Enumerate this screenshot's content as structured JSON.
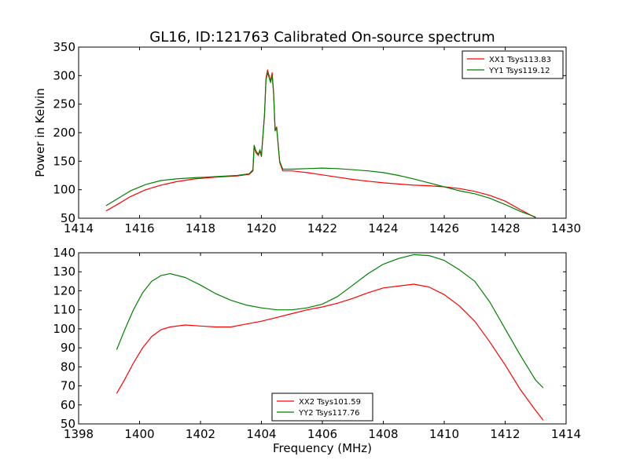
{
  "chart_data": [
    {
      "type": "line",
      "title": "GL16, ID:121763 Calibrated On-source spectrum",
      "xlabel": "",
      "ylabel": "Power in Kelvin",
      "xlim": [
        1414,
        1430
      ],
      "ylim": [
        50,
        350
      ],
      "xticks": [
        1414,
        1416,
        1418,
        1420,
        1422,
        1424,
        1426,
        1428,
        1430
      ],
      "yticks": [
        50,
        100,
        150,
        200,
        250,
        300,
        350
      ],
      "legend_position": "top-right",
      "series": [
        {
          "name": "XX1 Tsys113.83",
          "color": "#ff0000",
          "x": [
            1414.9,
            1415.3,
            1415.7,
            1416.2,
            1416.7,
            1417.2,
            1417.8,
            1418.5,
            1419.2,
            1419.6,
            1419.72,
            1419.76,
            1419.82,
            1419.9,
            1419.95,
            1420.0,
            1420.1,
            1420.15,
            1420.2,
            1420.25,
            1420.3,
            1420.35,
            1420.4,
            1420.45,
            1420.5,
            1420.55,
            1420.6,
            1420.7,
            1421.0,
            1421.5,
            1422.0,
            1422.5,
            1423.0,
            1423.5,
            1424.0,
            1424.5,
            1425.0,
            1425.5,
            1426.0,
            1426.5,
            1427.0,
            1427.5,
            1428.0,
            1428.5,
            1429.0
          ],
          "y": [
            63,
            75,
            88,
            100,
            108,
            114,
            119,
            122,
            124,
            127,
            133,
            175,
            165,
            160,
            168,
            158,
            230,
            295,
            310,
            300,
            290,
            305,
            270,
            205,
            210,
            180,
            148,
            133,
            133,
            130,
            126,
            122,
            118,
            115,
            112,
            110,
            108,
            107,
            105,
            102,
            97,
            90,
            80,
            65,
            51
          ]
        },
        {
          "name": "YY1 Tsys119.12",
          "color": "#008000",
          "x": [
            1414.9,
            1415.3,
            1415.7,
            1416.2,
            1416.7,
            1417.2,
            1417.8,
            1418.5,
            1419.2,
            1419.6,
            1419.72,
            1419.76,
            1419.82,
            1419.9,
            1419.95,
            1420.0,
            1420.1,
            1420.15,
            1420.2,
            1420.25,
            1420.3,
            1420.35,
            1420.4,
            1420.45,
            1420.5,
            1420.55,
            1420.6,
            1420.7,
            1421.0,
            1421.5,
            1422.0,
            1422.5,
            1423.0,
            1423.5,
            1424.0,
            1424.5,
            1425.0,
            1425.5,
            1426.0,
            1426.5,
            1427.0,
            1427.5,
            1428.0,
            1428.5,
            1429.0
          ],
          "y": [
            72,
            85,
            98,
            109,
            116,
            119,
            121,
            123,
            125,
            128,
            135,
            178,
            168,
            162,
            170,
            160,
            232,
            292,
            305,
            297,
            288,
            300,
            268,
            203,
            208,
            178,
            150,
            136,
            136,
            137,
            138,
            137,
            135,
            133,
            130,
            125,
            119,
            112,
            105,
            98,
            93,
            85,
            74,
            62,
            52
          ]
        }
      ]
    },
    {
      "type": "line",
      "title": "",
      "xlabel": "Frequency (MHz)",
      "ylabel": "",
      "xlim": [
        1398,
        1414
      ],
      "ylim": [
        50,
        140
      ],
      "xticks": [
        1398,
        1400,
        1402,
        1404,
        1406,
        1408,
        1410,
        1412,
        1414
      ],
      "yticks": [
        50,
        60,
        70,
        80,
        90,
        100,
        110,
        120,
        130,
        140
      ],
      "legend_position": "bottom-center",
      "series": [
        {
          "name": "XX2 Tsys101.59",
          "color": "#ff0000",
          "x": [
            1399.25,
            1399.5,
            1399.8,
            1400.1,
            1400.4,
            1400.7,
            1401.0,
            1401.5,
            1402.0,
            1402.5,
            1403.0,
            1403.5,
            1404.0,
            1404.5,
            1405.0,
            1405.5,
            1406.0,
            1406.5,
            1407.0,
            1407.5,
            1408.0,
            1408.5,
            1409.0,
            1409.5,
            1410.0,
            1410.5,
            1411.0,
            1411.5,
            1412.0,
            1412.5,
            1413.0,
            1413.25
          ],
          "y": [
            66,
            73,
            82,
            90,
            96,
            99.5,
            101,
            102,
            101.5,
            101,
            101,
            102.5,
            104,
            106,
            108,
            110,
            111.5,
            113.5,
            116,
            119,
            121.5,
            122.5,
            123.5,
            122,
            118,
            112,
            104,
            93,
            81,
            68,
            57,
            52
          ]
        },
        {
          "name": "YY2 Tsys117.76",
          "color": "#008000",
          "x": [
            1399.25,
            1399.5,
            1399.8,
            1400.1,
            1400.4,
            1400.7,
            1401.0,
            1401.5,
            1402.0,
            1402.5,
            1403.0,
            1403.5,
            1404.0,
            1404.5,
            1405.0,
            1405.5,
            1406.0,
            1406.5,
            1407.0,
            1407.5,
            1408.0,
            1408.5,
            1409.0,
            1409.5,
            1410.0,
            1410.5,
            1411.0,
            1411.5,
            1412.0,
            1412.5,
            1413.0,
            1413.25
          ],
          "y": [
            89,
            99,
            110,
            119,
            125,
            128,
            129,
            127,
            123,
            118.5,
            115,
            112.5,
            111,
            110,
            110,
            111,
            113,
            117,
            123,
            129,
            134,
            137,
            139,
            138.5,
            136,
            131,
            125,
            114,
            100,
            86,
            73,
            69
          ]
        }
      ]
    }
  ]
}
